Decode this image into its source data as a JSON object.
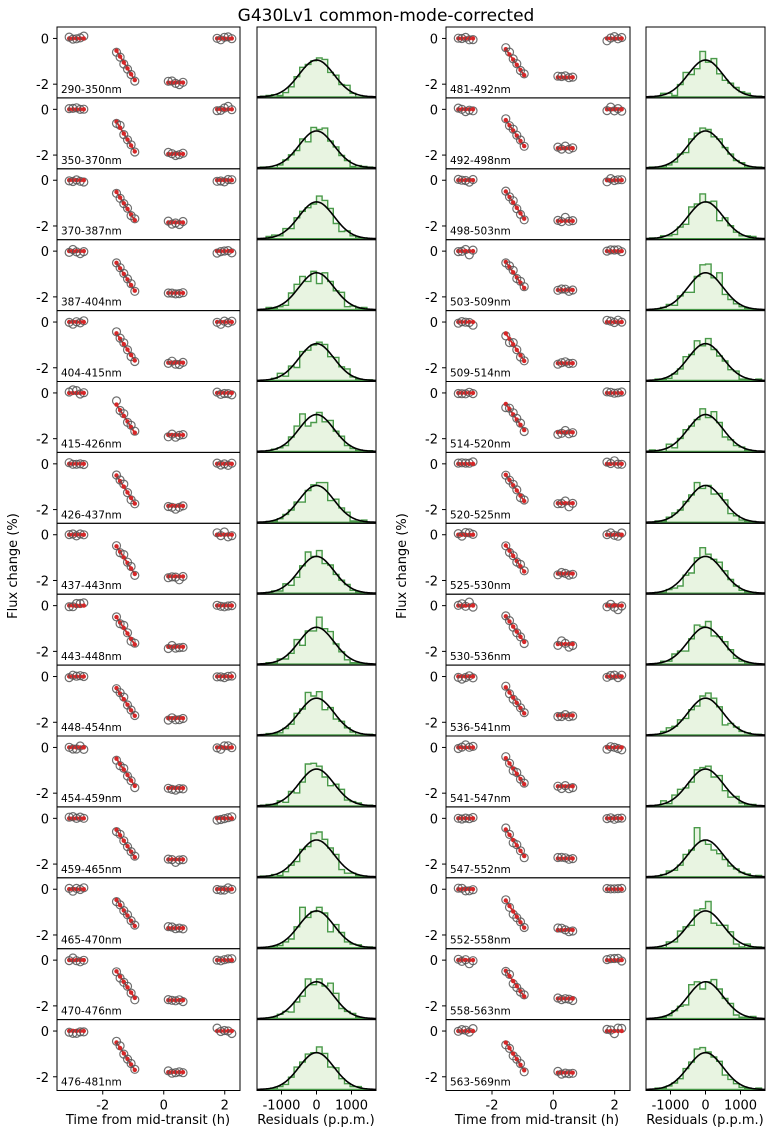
{
  "chart_data": {
    "type": "scatter",
    "title": "G430Lv1 common-mode-corrected",
    "ylabel": "Flux change (%)",
    "xlabel_lightcurve": "Time from mid-transit (h)",
    "xlabel_residuals": "Residuals (p.p.m.)",
    "lightcurve_xlim": [
      -3.5,
      2.5
    ],
    "lightcurve_ylim": [
      -2.6,
      0.5
    ],
    "lightcurve_xticks": [
      "-2",
      "0",
      "2"
    ],
    "lightcurve_yticks": [
      "0",
      "-2"
    ],
    "residual_xlim": [
      -1700,
      1700
    ],
    "residual_xticks": [
      "-1000",
      "0",
      "1000"
    ],
    "columns": [
      {
        "bins": [
          "290-350nm",
          "350-370nm",
          "370-387nm",
          "387-404nm",
          "404-415nm",
          "415-426nm",
          "426-437nm",
          "437-443nm",
          "443-448nm",
          "448-454nm",
          "454-459nm",
          "459-465nm",
          "465-470nm",
          "470-476nm",
          "476-481nm"
        ],
        "depth": [
          1.93,
          1.95,
          1.85,
          1.83,
          1.78,
          1.84,
          1.84,
          1.82,
          1.8,
          1.82,
          1.78,
          1.8,
          1.7,
          1.75,
          1.8
        ]
      },
      {
        "bins": [
          "481-492nm",
          "492-498nm",
          "498-503nm",
          "503-509nm",
          "509-514nm",
          "514-520nm",
          "520-525nm",
          "525-530nm",
          "530-536nm",
          "536-541nm",
          "541-547nm",
          "547-552nm",
          "552-558nm",
          "558-563nm",
          "563-569nm"
        ],
        "depth": [
          1.7,
          1.7,
          1.78,
          1.7,
          1.8,
          1.72,
          1.72,
          1.7,
          1.68,
          1.7,
          1.7,
          1.75,
          1.78,
          1.68,
          1.82
        ]
      }
    ],
    "observation_times_h": [
      -3.1,
      -2.98,
      -2.86,
      -2.74,
      -2.62,
      -1.55,
      -1.43,
      -1.31,
      -1.19,
      -1.07,
      -0.95,
      0.15,
      0.27,
      0.39,
      0.51,
      0.63,
      1.75,
      1.87,
      1.99,
      2.11,
      2.23
    ],
    "residual_histogram_bins_ppm": [
      -1600,
      -1440,
      -1280,
      -1120,
      -960,
      -800,
      -640,
      -480,
      -320,
      -160,
      0,
      160,
      320,
      480,
      640,
      800,
      960,
      1120,
      1280,
      1440,
      1600
    ]
  }
}
